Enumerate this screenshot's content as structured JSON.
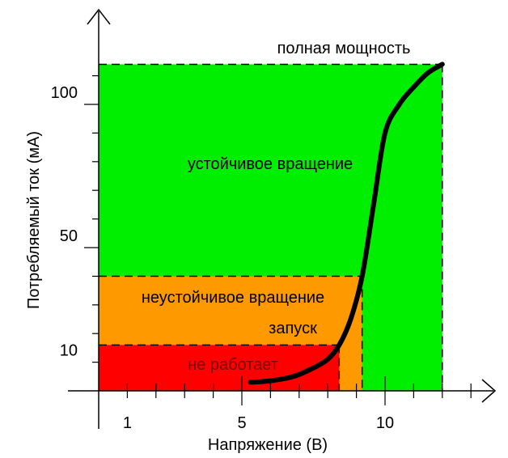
{
  "chart_data": {
    "type": "area",
    "xlabel": "Напряжение (В)",
    "ylabel": "Потребляемый ток (мА)",
    "xlim": [
      -0.5,
      13.5
    ],
    "ylim": [
      -10,
      128
    ],
    "x_ticks": [
      1,
      5,
      10
    ],
    "y_ticks": [
      10,
      50,
      100
    ],
    "zones": [
      {
        "label": "не работает",
        "x0": 0,
        "x1": 8.4,
        "y0": 0,
        "y1": 16,
        "color": "#ff0000"
      },
      {
        "label": "запуск",
        "x0": 0,
        "x1": 9.2,
        "y0": 0,
        "y1": 40,
        "color": "#ff9900"
      },
      {
        "label": "неустойчивое вращение",
        "x0": 0,
        "x1": 9.2,
        "y0": 0,
        "y1": 40,
        "color": "#ff9900"
      },
      {
        "label": "устойчивое вращение",
        "x0": 0,
        "x1": 12,
        "y0": 0,
        "y1": 114,
        "color": "#00ee00"
      }
    ],
    "annotation": "полная мощность",
    "series": [
      {
        "x": [
          5.3,
          6.0,
          6.8,
          7.5,
          8.0,
          8.4,
          8.8,
          9.2,
          9.6,
          10.0,
          10.5,
          11.0,
          11.5,
          12.0
        ],
        "y": [
          3,
          3.5,
          5,
          8,
          11,
          16,
          25,
          40,
          65,
          90,
          100,
          106,
          111,
          114
        ]
      }
    ]
  }
}
